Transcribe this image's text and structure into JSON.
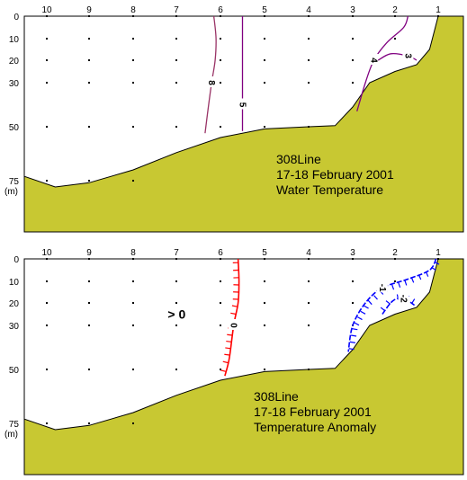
{
  "chart_data": [
    {
      "type": "contour",
      "annotation": [
        "308Line",
        "17-18 February 2001",
        "Water Temperature"
      ],
      "x_tick_labels": [
        "10",
        "9",
        "8",
        "7",
        "6",
        "5",
        "4",
        "3",
        "2",
        "1"
      ],
      "y_tick_labels": [
        "0",
        "10",
        "20",
        "30",
        "50",
        "75"
      ],
      "y_unit_label": "(m)",
      "station_depths": [
        [
          0,
          10,
          20,
          30,
          50,
          75
        ],
        [
          0,
          10,
          20,
          30,
          50,
          75
        ],
        [
          0,
          10,
          20,
          30,
          50,
          75
        ],
        [
          0,
          10,
          20,
          30,
          50
        ],
        [
          0,
          10,
          20,
          30,
          50
        ],
        [
          0,
          10,
          20,
          30,
          50
        ],
        [
          0,
          10,
          20,
          30,
          50
        ],
        [
          0,
          10,
          20,
          30
        ],
        [
          0,
          10
        ],
        [
          0
        ]
      ],
      "bottom_profile": [
        [
          10.4,
          73
        ],
        [
          9.8,
          78
        ],
        [
          9.0,
          76
        ],
        [
          8.0,
          70
        ],
        [
          7.0,
          62
        ],
        [
          6.0,
          55
        ],
        [
          5.0,
          51
        ],
        [
          4.0,
          50
        ],
        [
          3.4,
          49.5
        ],
        [
          3.0,
          41
        ],
        [
          2.6,
          30
        ],
        [
          2.0,
          25
        ],
        [
          1.5,
          22
        ],
        [
          1.2,
          15
        ],
        [
          1.0,
          0
        ]
      ],
      "contours": [
        {
          "label": "8",
          "color": "#993366",
          "points": [
            [
              6.15,
              0
            ],
            [
              6.1,
              10
            ],
            [
              6.12,
              20
            ],
            [
              6.2,
              30
            ],
            [
              6.3,
              45
            ],
            [
              6.35,
              53
            ]
          ]
        },
        {
          "label": "5",
          "color": "#800080",
          "points": [
            [
              5.5,
              0
            ],
            [
              5.5,
              20
            ],
            [
              5.5,
              40
            ],
            [
              5.5,
              52
            ]
          ]
        },
        {
          "label": "4",
          "color": "#800080",
          "points": [
            [
              1.7,
              0
            ],
            [
              1.8,
              5
            ],
            [
              2.2,
              12
            ],
            [
              2.5,
              20
            ],
            [
              2.7,
              30
            ],
            [
              2.9,
              43
            ]
          ]
        },
        {
          "label": "3",
          "color": "#800080",
          "points": [
            [
              2.4,
              20
            ],
            [
              2.1,
              17
            ],
            [
              1.7,
              18
            ],
            [
              1.5,
              20
            ]
          ]
        }
      ]
    },
    {
      "type": "contour",
      "annotation": [
        "308Line",
        "17-18 February 2001",
        "Temperature Anomaly"
      ],
      "x_tick_labels": [
        "10",
        "9",
        "8",
        "7",
        "6",
        "5",
        "4",
        "3",
        "2",
        "1"
      ],
      "y_tick_labels": [
        "0",
        "10",
        "20",
        "30",
        "50",
        "75"
      ],
      "y_unit_label": "(m)",
      "region_label": "> 0",
      "station_depths": [
        [
          0,
          10,
          20,
          30,
          50,
          75
        ],
        [
          0,
          10,
          20,
          30,
          50,
          75
        ],
        [
          0,
          10,
          20,
          30,
          50,
          75
        ],
        [
          0,
          10,
          20,
          30,
          50
        ],
        [
          0,
          10,
          20,
          30,
          50
        ],
        [
          0,
          10,
          20,
          30,
          50
        ],
        [
          0,
          10,
          20,
          30,
          50
        ],
        [
          0,
          10,
          20,
          30
        ],
        [
          0,
          10
        ],
        [
          0
        ]
      ],
      "bottom_profile": [
        [
          10.4,
          73
        ],
        [
          9.8,
          78
        ],
        [
          9.0,
          76
        ],
        [
          8.0,
          70
        ],
        [
          7.0,
          62
        ],
        [
          6.0,
          55
        ],
        [
          5.0,
          51
        ],
        [
          4.0,
          50
        ],
        [
          3.4,
          49.5
        ],
        [
          3.0,
          41
        ],
        [
          2.6,
          30
        ],
        [
          2.0,
          25
        ],
        [
          1.5,
          22
        ],
        [
          1.2,
          15
        ],
        [
          1.0,
          0
        ]
      ],
      "contours": [
        {
          "label": "0",
          "color": "#ff0000",
          "points": [
            [
              5.6,
              0
            ],
            [
              5.58,
              10
            ],
            [
              5.6,
              20
            ],
            [
              5.7,
              30
            ],
            [
              5.8,
              45
            ],
            [
              5.9,
              53
            ]
          ]
        },
        {
          "label": "-1",
          "color": "#0000ff",
          "points": [
            [
              1.05,
              0
            ],
            [
              1.2,
              5
            ],
            [
              1.7,
              9
            ],
            [
              2.3,
              13
            ],
            [
              2.7,
              20
            ],
            [
              3.0,
              30
            ],
            [
              3.1,
              42
            ]
          ]
        },
        {
          "label": "-2",
          "color": "#0000ff",
          "points": [
            [
              2.3,
              25
            ],
            [
              2.05,
              19
            ],
            [
              1.8,
              18
            ],
            [
              1.55,
              21
            ]
          ]
        }
      ]
    }
  ]
}
